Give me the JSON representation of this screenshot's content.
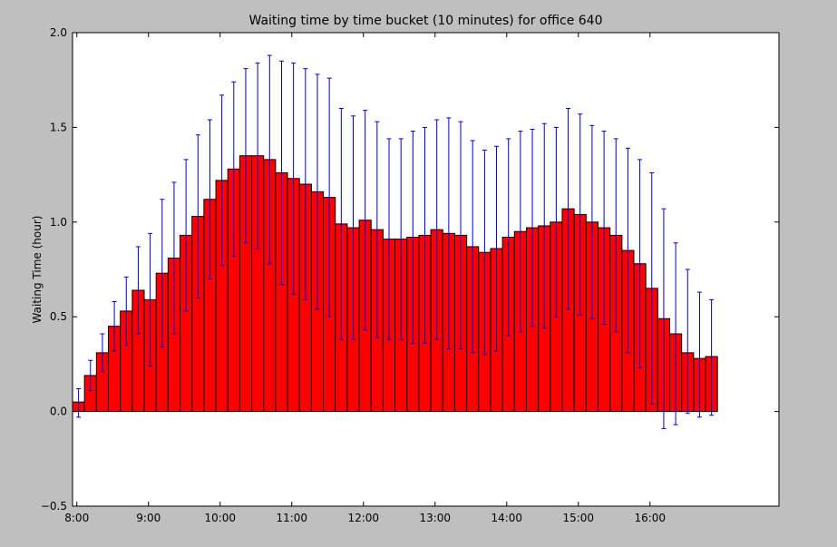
{
  "chart_data": {
    "type": "bar",
    "title": "Waiting time by time bucket (10 minutes) for office 640",
    "xlabel": "",
    "ylabel": "Waiting Time (hour)",
    "ylim": [
      -0.5,
      2.0
    ],
    "yticks": [
      -0.5,
      0.0,
      0.5,
      1.0,
      1.5,
      2.0
    ],
    "ytick_labels": [
      "−0.5",
      "0.0",
      "0.5",
      "1.0",
      "1.5",
      "2.0"
    ],
    "xlim_hours": [
      7.94,
      17.8
    ],
    "xticks_hours": [
      8,
      9,
      10,
      11,
      12,
      13,
      14,
      15,
      16
    ],
    "xtick_labels": [
      "8:00",
      "9:00",
      "10:00",
      "11:00",
      "12:00",
      "13:00",
      "14:00",
      "15:00",
      "16:00"
    ],
    "bar_width_hours": 0.1667,
    "bar_start_hour": 7.94,
    "bar_color": "#ff0000",
    "error_color": "#0000cc",
    "grid": false,
    "values": [
      0.05,
      0.19,
      0.31,
      0.45,
      0.53,
      0.64,
      0.59,
      0.73,
      0.81,
      0.93,
      1.03,
      1.12,
      1.22,
      1.28,
      1.35,
      1.35,
      1.33,
      1.26,
      1.23,
      1.2,
      1.16,
      1.13,
      0.99,
      0.97,
      1.01,
      0.96,
      0.91,
      0.91,
      0.92,
      0.93,
      0.96,
      0.94,
      0.93,
      0.87,
      0.84,
      0.86,
      0.92,
      0.95,
      0.97,
      0.98,
      1.0,
      1.07,
      1.04,
      1.0,
      0.97,
      0.93,
      0.85,
      0.78,
      0.65,
      0.49,
      0.41,
      0.31,
      0.28,
      0.29
    ],
    "error_upper": [
      0.12,
      0.27,
      0.41,
      0.58,
      0.71,
      0.87,
      0.94,
      1.12,
      1.21,
      1.33,
      1.46,
      1.54,
      1.67,
      1.74,
      1.81,
      1.84,
      1.88,
      1.85,
      1.84,
      1.81,
      1.78,
      1.76,
      1.6,
      1.56,
      1.59,
      1.53,
      1.44,
      1.44,
      1.48,
      1.5,
      1.54,
      1.55,
      1.53,
      1.43,
      1.38,
      1.4,
      1.44,
      1.48,
      1.49,
      1.52,
      1.5,
      1.6,
      1.57,
      1.51,
      1.48,
      1.44,
      1.39,
      1.33,
      1.26,
      1.07,
      0.89,
      0.75,
      0.63,
      0.59
    ],
    "error_lower": [
      -0.03,
      0.11,
      0.21,
      0.32,
      0.35,
      0.41,
      0.24,
      0.34,
      0.41,
      0.53,
      0.6,
      0.7,
      0.77,
      0.82,
      0.89,
      0.86,
      0.78,
      0.67,
      0.62,
      0.59,
      0.54,
      0.5,
      0.38,
      0.38,
      0.43,
      0.39,
      0.38,
      0.38,
      0.36,
      0.36,
      0.38,
      0.33,
      0.33,
      0.31,
      0.3,
      0.32,
      0.4,
      0.42,
      0.45,
      0.44,
      0.5,
      0.54,
      0.51,
      0.49,
      0.46,
      0.42,
      0.31,
      0.23,
      0.04,
      -0.09,
      -0.07,
      -0.01,
      -0.03,
      -0.02
    ]
  }
}
